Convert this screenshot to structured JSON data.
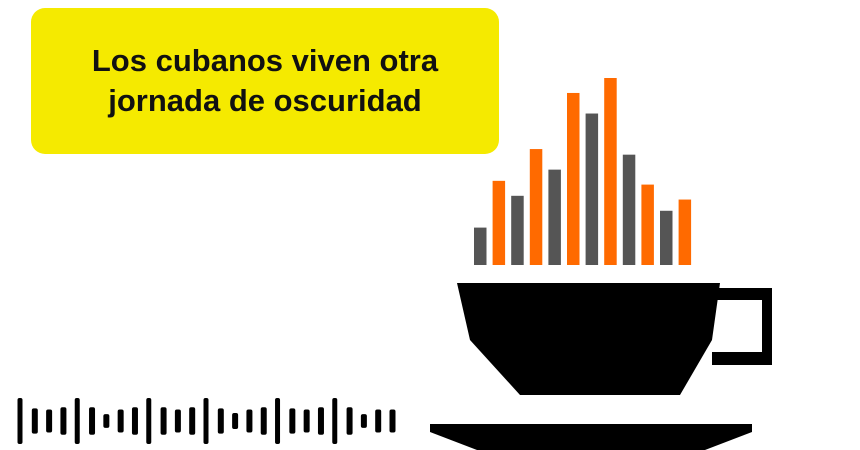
{
  "headline": {
    "line1": "Los cubanos viven otra",
    "line2": "jornada de oscuridad"
  },
  "colors": {
    "headline_bg": "#f5ea00",
    "orange": "#ff6a00",
    "gray": "#555555",
    "cup": "#000000"
  },
  "equalizer_levels": [
    0.2,
    0.45,
    0.37,
    0.62,
    0.51,
    0.92,
    0.81,
    1.0,
    0.59,
    0.43,
    0.29,
    0.35
  ],
  "waveform_levels": [
    1,
    0.55,
    0.5,
    0.6,
    1,
    0.6,
    0.3,
    0.5,
    0.6,
    1,
    0.6,
    0.5,
    0.6,
    1,
    0.55,
    0.35,
    0.5,
    0.6,
    1,
    0.55,
    0.5,
    0.6,
    1,
    0.6,
    0.3,
    0.5,
    0.5
  ]
}
